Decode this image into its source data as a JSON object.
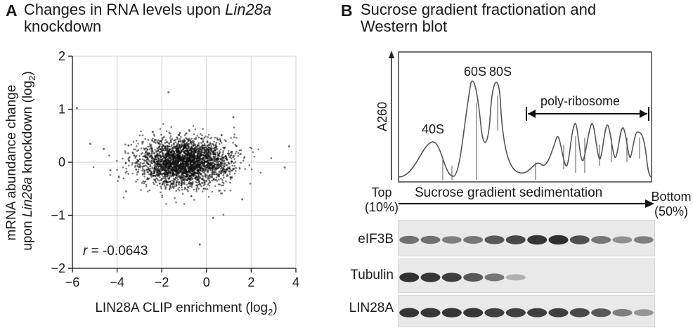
{
  "panel_a": {
    "letter": "A",
    "title_part1": "Changes in RNA levels upon ",
    "title_italic": "Lin28a",
    "title_line2": "knockdown",
    "annotation_r": "r",
    "annotation_value": " = -0.0643"
  },
  "panel_b": {
    "letter": "B",
    "title_line1": "Sucrose gradient fractionation and",
    "title_line2": "Western blot",
    "profile_ylabel": "A260",
    "peak_labels": [
      "40S",
      "60S",
      "80S"
    ],
    "polysome_label": "poly-ribosome",
    "top_label": "Top",
    "top_pct": "(10%)",
    "bottom_label": "Bottom",
    "bottom_pct": "(50%)",
    "gradient_label": "Sucrose gradient sedimentation",
    "blots": [
      {
        "name": "eIF3B",
        "band_intensity": [
          0.55,
          0.55,
          0.45,
          0.5,
          0.7,
          0.8,
          0.9,
          0.95,
          0.75,
          0.5,
          0.35,
          0.45
        ]
      },
      {
        "name": "Tubulin",
        "band_intensity": [
          0.95,
          0.9,
          0.85,
          0.7,
          0.5,
          0.15,
          0,
          0,
          0,
          0,
          0,
          0
        ]
      },
      {
        "name": "LIN28A",
        "band_intensity": [
          0.9,
          0.9,
          0.9,
          0.9,
          0.85,
          0.85,
          0.85,
          0.85,
          0.8,
          0.7,
          0.45,
          0.3
        ]
      }
    ]
  },
  "chart_data": {
    "type": "scatter",
    "xlabel": "LIN28A CLIP enrichment (log2)",
    "ylabel": "mRNA abundance change upon Lin28a knockdown (log2)",
    "xlim": [
      -6,
      4
    ],
    "ylim": [
      -2,
      2
    ],
    "xticks": [
      "−6",
      "−4",
      "−2",
      "0",
      "2",
      "4"
    ],
    "yticks": [
      "−2",
      "−1",
      "0",
      "1",
      "2"
    ],
    "grid": true,
    "correlation_r": -0.0643,
    "cloud": {
      "center_x": -1.0,
      "center_y": 0.0,
      "sd_x": 1.0,
      "sd_y": 0.22,
      "n_points": 3000
    },
    "outliers": [
      {
        "x": -5.8,
        "y": 1.02
      },
      {
        "x": -5.2,
        "y": 0.35
      },
      {
        "x": -4.6,
        "y": 0.25
      },
      {
        "x": -4.3,
        "y": -0.15
      },
      {
        "x": 3.7,
        "y": 0.3
      },
      {
        "x": 3.5,
        "y": -0.1
      },
      {
        "x": 1.6,
        "y": -0.7
      },
      {
        "x": -1.7,
        "y": 1.32
      },
      {
        "x": 0.3,
        "y": -1.05
      },
      {
        "x": -0.3,
        "y": -1.55
      },
      {
        "x": 1.2,
        "y": 0.85
      },
      {
        "x": -3.6,
        "y": -0.55
      }
    ]
  }
}
